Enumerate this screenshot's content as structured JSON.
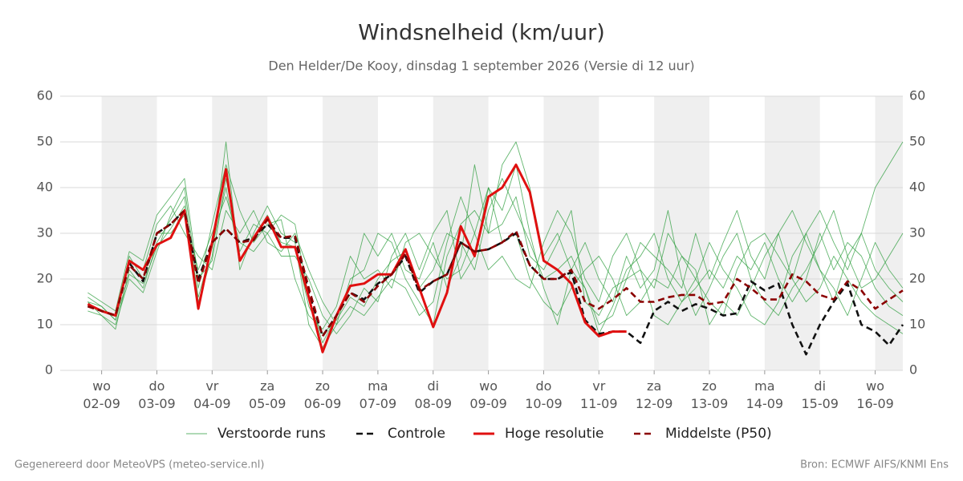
{
  "chart_data": {
    "type": "line",
    "title": "Windsnelheid (km/uur)",
    "subtitle": "Den Helder/De Kooy, dinsdag  1 september 2026 (Versie di 12 uur)",
    "footer_left": "Gegenereerd door MeteoVPS (meteo-service.nl)",
    "footer_right": "Bron: ECMWF AIFS/KNMI Ens",
    "xlim": [
      6,
      372
    ],
    "xticks": [
      {
        "value": 24,
        "label": "wo\n02-09"
      },
      {
        "value": 48,
        "label": "do\n03-09"
      },
      {
        "value": 72,
        "label": "vr\n04-09"
      },
      {
        "value": 96,
        "label": "za\n05-09"
      },
      {
        "value": 120,
        "label": "zo\n06-09"
      },
      {
        "value": 144,
        "label": "ma\n07-09"
      },
      {
        "value": 168,
        "label": "di\n08-09"
      },
      {
        "value": 192,
        "label": "wo\n09-09"
      },
      {
        "value": 216,
        "label": "do\n10-09"
      },
      {
        "value": 240,
        "label": "vr\n11-09"
      },
      {
        "value": 264,
        "label": "za\n12-09"
      },
      {
        "value": 288,
        "label": "zo\n13-09"
      },
      {
        "value": 312,
        "label": "ma\n14-09"
      },
      {
        "value": 336,
        "label": "di\n15-09"
      },
      {
        "value": 360,
        "label": "wo\n16-09"
      }
    ],
    "ylim": [
      0,
      60
    ],
    "yticks": [
      0,
      10,
      20,
      30,
      40,
      50,
      60
    ],
    "grid": true,
    "x": [
      18,
      24,
      30,
      36,
      42,
      48,
      54,
      60,
      66,
      72,
      78,
      84,
      90,
      96,
      102,
      108,
      114,
      120,
      126,
      132,
      138,
      144,
      150,
      156,
      162,
      168,
      174,
      180,
      186,
      192,
      198,
      204,
      210,
      216,
      222,
      228,
      234,
      240,
      246,
      252,
      258,
      264,
      270,
      276,
      282,
      288,
      294,
      300,
      306,
      312,
      318,
      324,
      330,
      336,
      342,
      348,
      354,
      360,
      366,
      372
    ],
    "series": [
      {
        "name": "Verstoorde runs",
        "color": "#2e9e3e",
        "style": "thin",
        "members": [
          [
            15,
            12,
            9,
            22,
            18,
            28,
            33,
            38,
            15,
            25,
            50,
            22,
            30,
            36,
            30,
            28,
            10,
            5,
            10,
            20,
            22,
            30,
            28,
            20,
            15,
            10,
            25,
            32,
            35,
            30,
            45,
            50,
            40,
            25,
            30,
            22,
            18,
            10,
            12,
            20,
            22,
            18,
            30,
            25,
            20,
            15,
            12,
            22,
            28,
            30,
            25,
            20,
            30,
            35,
            28,
            22,
            30,
            40,
            45,
            50
          ],
          [
            16,
            14,
            11,
            25,
            20,
            30,
            30,
            34,
            22,
            30,
            38,
            28,
            26,
            30,
            25,
            25,
            20,
            12,
            8,
            12,
            18,
            15,
            25,
            30,
            22,
            30,
            35,
            20,
            25,
            40,
            28,
            30,
            20,
            15,
            12,
            18,
            22,
            25,
            20,
            12,
            15,
            20,
            18,
            25,
            22,
            10,
            15,
            12,
            18,
            25,
            30,
            20,
            15,
            18,
            25,
            20,
            15,
            12,
            10,
            8
          ],
          [
            13,
            12,
            10,
            20,
            17,
            26,
            34,
            40,
            18,
            32,
            45,
            35,
            28,
            32,
            33,
            20,
            12,
            9,
            14,
            25,
            20,
            22,
            18,
            28,
            30,
            25,
            20,
            22,
            30,
            40,
            35,
            45,
            30,
            18,
            10,
            22,
            28,
            20,
            15,
            25,
            18,
            22,
            35,
            20,
            12,
            18,
            25,
            30,
            20,
            15,
            12,
            18,
            22,
            28,
            35,
            25,
            18,
            20,
            25,
            30
          ],
          [
            14,
            13,
            12,
            24,
            22,
            32,
            36,
            30,
            25,
            22,
            35,
            30,
            35,
            28,
            26,
            30,
            22,
            15,
            10,
            14,
            12,
            16,
            20,
            18,
            12,
            15,
            28,
            38,
            30,
            22,
            25,
            20,
            18,
            28,
            35,
            30,
            20,
            15,
            25,
            30,
            22,
            12,
            10,
            15,
            20,
            28,
            22,
            18,
            12,
            10,
            15,
            25,
            30,
            22,
            18,
            12,
            20,
            28,
            22,
            18
          ],
          [
            17,
            15,
            13,
            26,
            24,
            34,
            38,
            42,
            20,
            24,
            42,
            26,
            32,
            30,
            34,
            32,
            16,
            6,
            12,
            18,
            30,
            25,
            30,
            22,
            20,
            28,
            18,
            25,
            45,
            30,
            32,
            38,
            25,
            22,
            28,
            35,
            15,
            12,
            18,
            20,
            28,
            25,
            22,
            18,
            30,
            20,
            28,
            35,
            25,
            20,
            30,
            35,
            28,
            22,
            15,
            25,
            30,
            22,
            18,
            15
          ],
          [
            15,
            14,
            11,
            21,
            19,
            27,
            31,
            36,
            16,
            27,
            40,
            24,
            29,
            34,
            28,
            27,
            14,
            8,
            11,
            16,
            14,
            20,
            24,
            26,
            18,
            22,
            30,
            28,
            22,
            35,
            42,
            35,
            28,
            20,
            22,
            25,
            18,
            8,
            14,
            22,
            25,
            30,
            20,
            15,
            18,
            22,
            18,
            25,
            22,
            28,
            20,
            15,
            20,
            30,
            22,
            28,
            25,
            18,
            14,
            12
          ]
        ]
      },
      {
        "name": "Controle",
        "color": "#111111",
        "style": "dashed",
        "values": [
          14,
          13,
          12,
          23.5,
          19.5,
          30,
          32,
          35,
          20,
          28,
          31,
          28,
          29,
          32,
          29,
          29,
          17,
          7.5,
          12,
          17,
          15.5,
          19,
          21,
          25,
          17,
          19.5,
          21,
          28,
          26,
          26.5,
          28,
          30,
          23,
          20,
          20,
          21.5,
          11,
          8,
          8.5,
          8.5,
          6,
          13,
          15,
          13,
          14.5,
          13.5,
          12,
          12.5,
          19.5,
          17.5,
          19,
          10,
          3.5,
          10,
          15,
          19,
          10,
          8.5,
          5.5,
          10
        ]
      },
      {
        "name": "Hoge resolutie",
        "color": "#e01010",
        "style": "thick",
        "values": [
          14.5,
          13,
          12,
          24,
          22,
          27.5,
          29,
          35,
          13.5,
          28,
          44,
          24,
          29,
          33.5,
          27,
          27,
          16,
          4,
          12,
          18.5,
          19,
          21,
          21,
          26.5,
          18,
          9.5,
          17,
          31.5,
          25,
          38,
          40,
          45,
          39,
          24,
          22,
          19,
          10.5,
          7.5,
          8.5,
          8.5,
          null,
          null,
          null,
          null,
          null,
          null,
          null,
          null,
          null,
          null,
          null,
          null,
          null,
          null,
          null,
          null,
          null,
          null,
          null,
          null
        ]
      },
      {
        "name": "Middelste (P50)",
        "color": "#8b0000",
        "style": "dashed",
        "values": [
          14,
          13,
          12,
          23,
          20,
          30,
          32,
          35,
          19,
          28,
          31,
          28,
          28.5,
          33,
          29,
          29.5,
          18,
          7.5,
          12,
          17,
          15,
          18.5,
          21,
          25.5,
          17.5,
          19.5,
          21,
          28,
          26,
          26.5,
          28,
          30.5,
          23,
          20,
          20,
          22,
          15,
          13.5,
          15.5,
          18,
          15,
          15,
          16,
          16.5,
          16.5,
          14.5,
          15,
          20,
          18,
          15.5,
          15.5,
          21,
          19.5,
          16.5,
          15.5,
          19.5,
          17.5,
          13.5,
          15.5,
          17.5
        ]
      }
    ]
  }
}
